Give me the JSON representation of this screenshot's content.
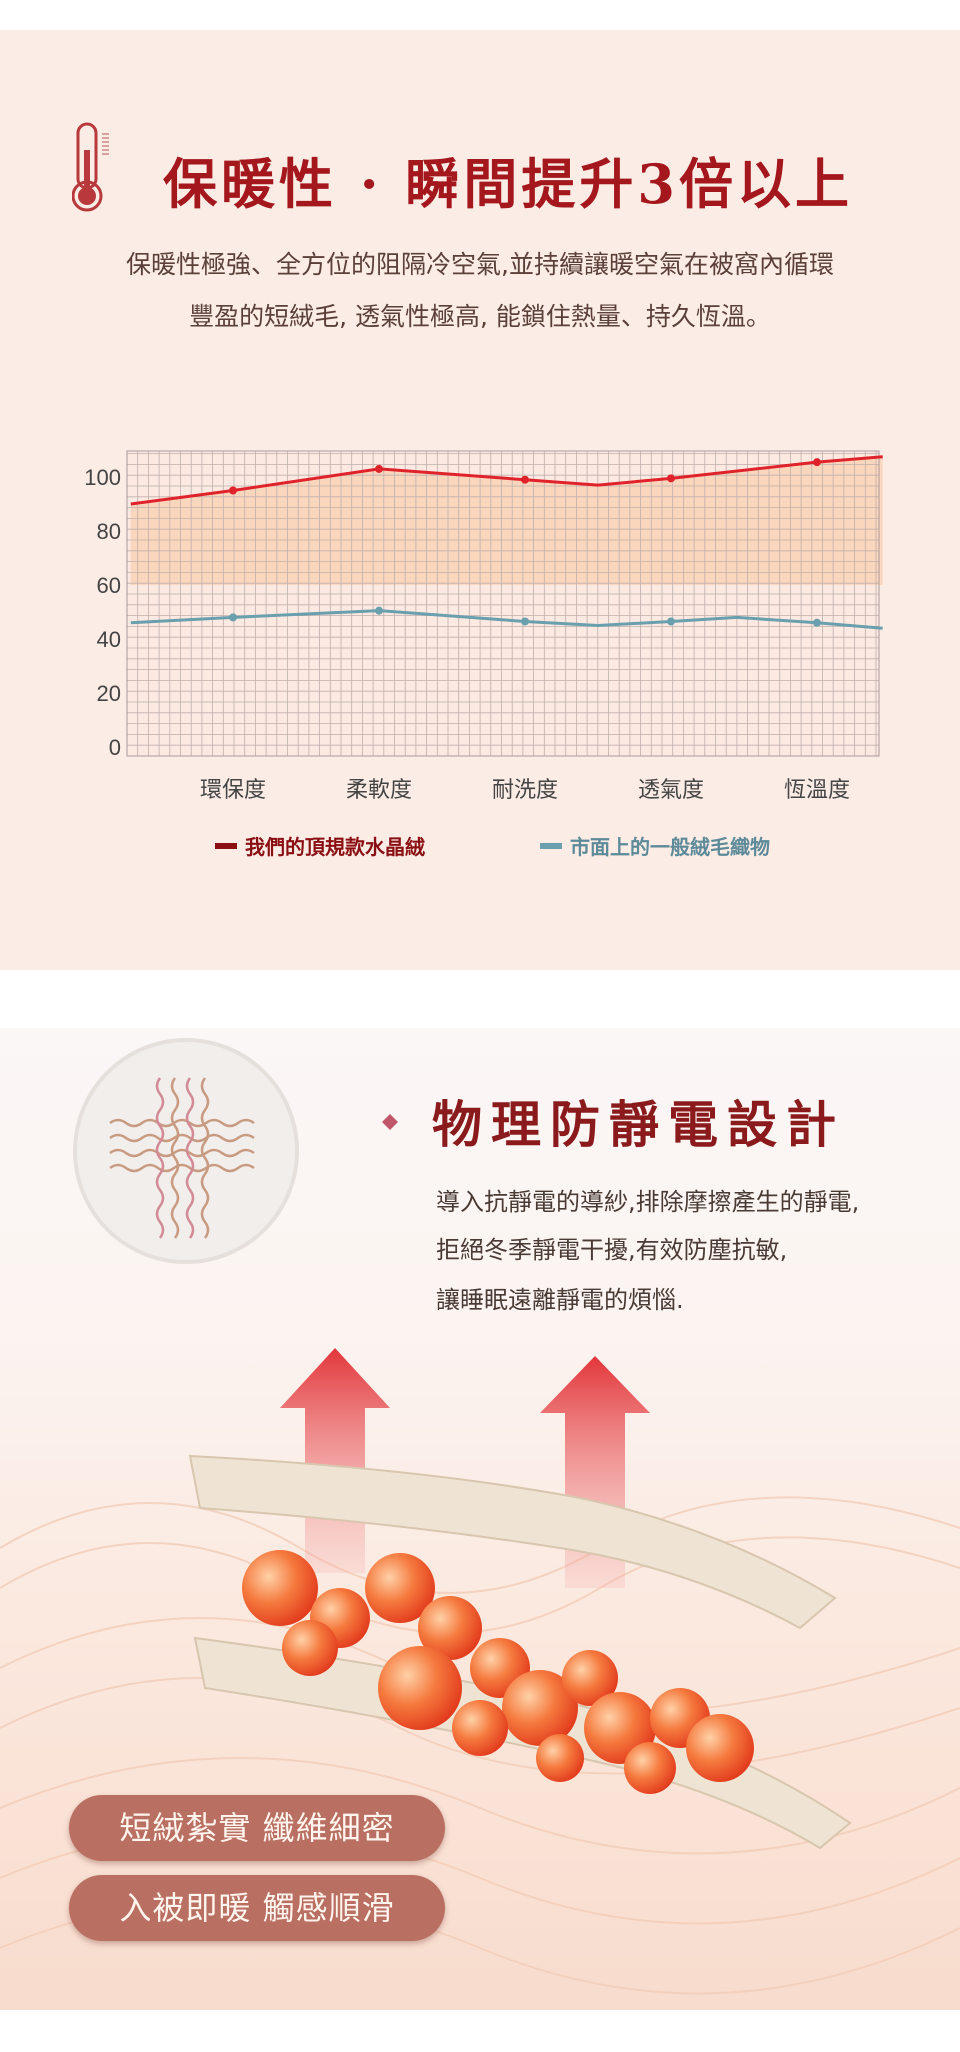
{
  "section1": {
    "icon": "thermometer-icon",
    "title": "保暖性 · 瞬間提升3倍以上",
    "description": [
      "保暖性極強、全方位的阻隔冷空氣,並持續讓暖空氣在被窩內循環",
      "豐盈的短絨毛, 透氣性極高, 能鎖住熱量、持久恆溫。"
    ]
  },
  "chart_data": {
    "type": "line",
    "categories": [
      "環保度",
      "柔軟度",
      "耐洗度",
      "透氣度",
      "恆溫度"
    ],
    "ylim": [
      0,
      110
    ],
    "yticks": [
      0,
      20,
      40,
      60,
      80,
      100
    ],
    "grid": true,
    "legend_position": "bottom",
    "series": [
      {
        "name": "我們的頂規款水晶絨",
        "color": "#e0232b",
        "fill": "#f9cfb0",
        "points": [
          [
            0.3,
            90
          ],
          [
            1,
            95
          ],
          [
            2,
            103
          ],
          [
            3,
            99
          ],
          [
            3.5,
            97
          ],
          [
            4,
            99.5
          ],
          [
            5,
            105.5
          ],
          [
            5.45,
            107.5
          ]
        ],
        "markers_at": [
          1,
          2,
          3,
          4,
          5
        ]
      },
      {
        "name": "市面上的一般絨毛織物",
        "color": "#6a9fae",
        "points": [
          [
            0.3,
            46
          ],
          [
            1,
            48
          ],
          [
            2,
            50.5
          ],
          [
            3,
            46.5
          ],
          [
            3.5,
            45
          ],
          [
            4,
            46.5
          ],
          [
            4.45,
            48
          ],
          [
            5,
            46
          ],
          [
            5.45,
            44
          ]
        ],
        "markers_at": [
          1,
          2,
          3,
          4,
          5
        ]
      }
    ]
  },
  "section2": {
    "icon": "woven-fiber-icon",
    "bullet": "diamond-icon",
    "title": "物理防靜電設計",
    "body": [
      "導入抗靜電的導紗,排除摩擦產生的靜電,",
      "拒絕冬季靜電干擾,有效防塵抗敏,",
      "讓睡眠遠離靜電的煩惱."
    ],
    "pills": [
      "短絨紮實 纖維細密",
      "入被即暖 觸感順滑"
    ],
    "accent": "#b96f62"
  }
}
